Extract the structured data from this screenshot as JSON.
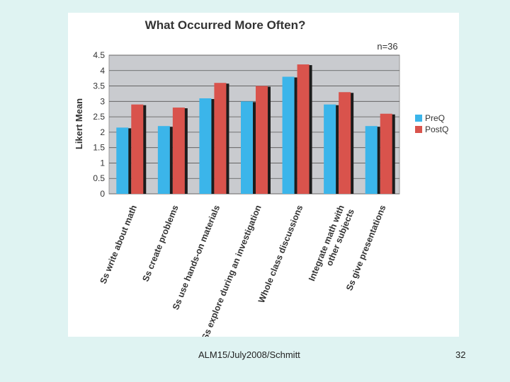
{
  "slide": {
    "footer_text": "ALM15/July2008/Schmitt",
    "page_number": "32",
    "background_color": "#dff3f2"
  },
  "chart_data": {
    "type": "bar",
    "title": "What Occurred More Often?",
    "annotation": "n=36",
    "ylabel": "Likert Mean",
    "xlabel": "",
    "ylim": [
      0,
      4.5
    ],
    "yticks": [
      0,
      0.5,
      1,
      1.5,
      2,
      2.5,
      3,
      3.5,
      4,
      4.5
    ],
    "grid": true,
    "legend_position": "right",
    "categories": [
      [
        "Ss write about math"
      ],
      [
        "Ss create problems"
      ],
      [
        "Ss use hands-on materials"
      ],
      [
        "Ss explore during an investigation"
      ],
      [
        "Whole class discussions"
      ],
      [
        "Integrate math with",
        "other subjects"
      ],
      [
        "Ss give presentations"
      ]
    ],
    "series": [
      {
        "name": "PreQ",
        "color": "#3bb5ea",
        "values": [
          2.15,
          2.2,
          3.1,
          3.0,
          3.8,
          2.9,
          2.2
        ]
      },
      {
        "name": "PostQ",
        "color": "#d9534c",
        "values": [
          2.9,
          2.8,
          3.6,
          3.5,
          4.2,
          3.3,
          2.6
        ]
      }
    ],
    "plot_background": "#c9cbcf"
  }
}
